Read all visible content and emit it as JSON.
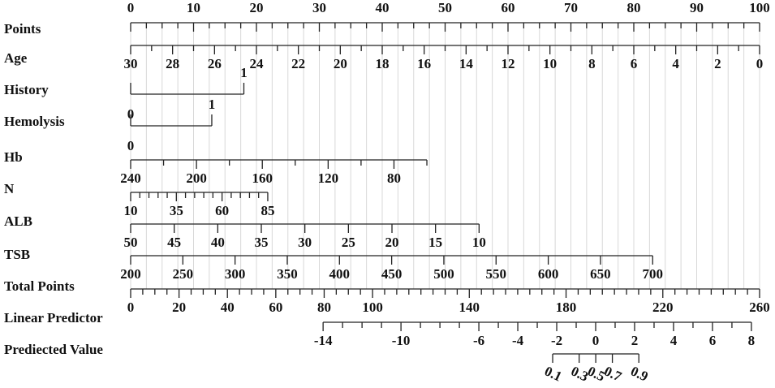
{
  "chart_data": {
    "type": "nomogram",
    "grid": true,
    "rows": [
      {
        "label": "Points",
        "lim": [
          0,
          100
        ],
        "span": [
          0,
          100
        ],
        "label_side": "top",
        "ticks": [
          0,
          10,
          20,
          30,
          40,
          50,
          60,
          70,
          80,
          90,
          100
        ],
        "minor_ticks": [
          2.5,
          5,
          7.5,
          12.5,
          15,
          17.5,
          22.5,
          25,
          27.5,
          32.5,
          35,
          37.5,
          42.5,
          45,
          47.5,
          52.5,
          55,
          57.5,
          62.5,
          65,
          67.5,
          72.5,
          75,
          77.5,
          82.5,
          85,
          87.5,
          92.5,
          95,
          97.5
        ]
      },
      {
        "label": "Age",
        "lim": [
          30,
          0
        ],
        "span": [
          0,
          100
        ],
        "label_side": "bottom",
        "ticks": [
          30,
          28,
          26,
          24,
          22,
          20,
          18,
          16,
          14,
          12,
          10,
          8,
          6,
          4,
          2,
          0
        ],
        "minor_ticks": [
          29,
          27,
          25,
          23,
          21,
          19,
          17,
          15,
          13,
          11,
          9,
          7,
          5,
          3,
          1
        ]
      },
      {
        "label": "History",
        "lim": [
          0,
          1
        ],
        "span": [
          0,
          18
        ],
        "kind": "binary",
        "ticks": [
          0,
          1
        ],
        "minor_ticks": []
      },
      {
        "label": "Hemolysis",
        "lim": [
          0,
          1
        ],
        "span": [
          0,
          12.9
        ],
        "kind": "binary",
        "ticks": [
          0,
          1
        ],
        "minor_ticks": []
      },
      {
        "label": "Hb",
        "lim": [
          240,
          60
        ],
        "span": [
          0,
          47.1
        ],
        "label_side": "bottom",
        "ticks": [
          240,
          200,
          160,
          120,
          80
        ],
        "minor_ticks": [
          220,
          180,
          140,
          100,
          60
        ]
      },
      {
        "label": "N",
        "lim": [
          10,
          85
        ],
        "span": [
          0,
          21.8
        ],
        "label_side": "bottom",
        "ticks": [
          10,
          35,
          60,
          85
        ],
        "minor_ticks": [
          15,
          20,
          25,
          30,
          40,
          45,
          50,
          55,
          65,
          70,
          75,
          80
        ]
      },
      {
        "label": "ALB",
        "lim": [
          50,
          10
        ],
        "span": [
          0,
          55.4
        ],
        "label_side": "bottom",
        "ticks": [
          50,
          45,
          40,
          35,
          30,
          25,
          20,
          15,
          10
        ],
        "minor_ticks": []
      },
      {
        "label": "TSB",
        "lim": [
          200,
          700
        ],
        "span": [
          0,
          83
        ],
        "label_side": "bottom",
        "ticks": [
          200,
          250,
          300,
          350,
          400,
          450,
          500,
          550,
          600,
          650,
          700
        ],
        "minor_ticks": []
      },
      {
        "label": "Total Points",
        "lim": [
          0,
          260
        ],
        "span": [
          0,
          100
        ],
        "label_side": "bottom",
        "ticks": [
          0,
          20,
          40,
          60,
          80,
          100,
          140,
          180,
          220,
          260
        ],
        "minor_ticks": [
          5,
          10,
          15,
          25,
          30,
          35,
          45,
          50,
          55,
          65,
          70,
          75,
          85,
          90,
          95,
          105,
          110,
          115,
          120,
          125,
          130,
          135,
          145,
          150,
          155,
          160,
          165,
          170,
          175,
          185,
          190,
          195,
          200,
          205,
          210,
          215,
          225,
          230,
          235,
          240,
          245,
          250,
          255
        ]
      },
      {
        "label": "Linear Predictor",
        "lim": [
          -14,
          8
        ],
        "span": [
          30.6,
          98.7
        ],
        "label_side": "bottom",
        "ticks": [
          -14,
          -10,
          -6,
          -4,
          -2,
          0,
          2,
          4,
          6,
          8
        ],
        "minor_ticks": [
          -13,
          -12,
          -11,
          -9,
          -8,
          -7,
          -5,
          -3,
          -1,
          1,
          3,
          5,
          7
        ]
      },
      {
        "label": "Prediected Value",
        "lim": [
          0.1,
          0.9
        ],
        "span": [
          67.1,
          80.8
        ],
        "scale": "logit",
        "label_side": "bottom",
        "ticks": [
          0.1,
          0.3,
          0.5,
          0.7,
          0.9
        ],
        "minor_ticks": []
      }
    ]
  }
}
